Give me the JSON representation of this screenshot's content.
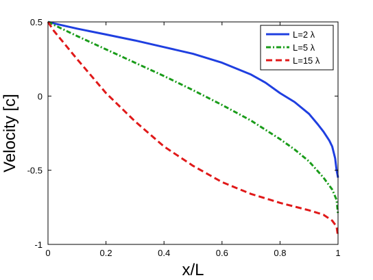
{
  "chart_data": {
    "type": "line",
    "title": "",
    "xlabel": "x/L",
    "ylabel": "Velocity [c]",
    "xlim": [
      0,
      1
    ],
    "ylim": [
      -1,
      0.5
    ],
    "grid": false,
    "legend_placement": "top-right",
    "x_ticks": [
      {
        "value": 0,
        "label": "0"
      },
      {
        "value": 0.2,
        "label": "0.2"
      },
      {
        "value": 0.4,
        "label": "0.4"
      },
      {
        "value": 0.6,
        "label": "0.6"
      },
      {
        "value": 0.8,
        "label": "0.8"
      },
      {
        "value": 1,
        "label": "1"
      }
    ],
    "y_ticks": [
      {
        "value": 0.5,
        "label": "0.5"
      },
      {
        "value": 0,
        "label": "0"
      },
      {
        "value": -0.5,
        "label": "-0.5"
      },
      {
        "value": -1,
        "label": "-1"
      }
    ],
    "series": [
      {
        "name": "L=2 λ",
        "color": "#1f3fe0",
        "dash": "solid",
        "x": [
          0,
          0.02,
          0.1,
          0.2,
          0.3,
          0.4,
          0.5,
          0.6,
          0.7,
          0.75,
          0.8,
          0.85,
          0.9,
          0.93,
          0.95,
          0.97,
          0.98,
          0.99,
          0.995,
          1.0
        ],
        "y": [
          0.5,
          0.49,
          0.455,
          0.415,
          0.375,
          0.33,
          0.285,
          0.225,
          0.145,
          0.09,
          0.02,
          -0.04,
          -0.12,
          -0.19,
          -0.24,
          -0.3,
          -0.34,
          -0.42,
          -0.5,
          -0.55
        ]
      },
      {
        "name": "L=5 λ",
        "color": "#1a9c1a",
        "dash": "dashdot",
        "x": [
          0,
          0.02,
          0.1,
          0.2,
          0.3,
          0.4,
          0.5,
          0.6,
          0.7,
          0.8,
          0.85,
          0.9,
          0.95,
          0.98,
          0.995,
          1.0
        ],
        "y": [
          0.5,
          0.48,
          0.405,
          0.315,
          0.225,
          0.135,
          0.04,
          -0.06,
          -0.165,
          -0.29,
          -0.36,
          -0.44,
          -0.55,
          -0.63,
          -0.7,
          -0.8
        ]
      },
      {
        "name": "L=15 λ",
        "color": "#e01919",
        "dash": "dashed",
        "x": [
          0,
          0.02,
          0.1,
          0.2,
          0.3,
          0.4,
          0.5,
          0.6,
          0.7,
          0.8,
          0.9,
          0.95,
          0.98,
          0.995,
          1.0
        ],
        "y": [
          0.5,
          0.44,
          0.25,
          0.02,
          -0.17,
          -0.34,
          -0.47,
          -0.58,
          -0.66,
          -0.72,
          -0.77,
          -0.8,
          -0.84,
          -0.88,
          -0.95
        ]
      }
    ]
  }
}
